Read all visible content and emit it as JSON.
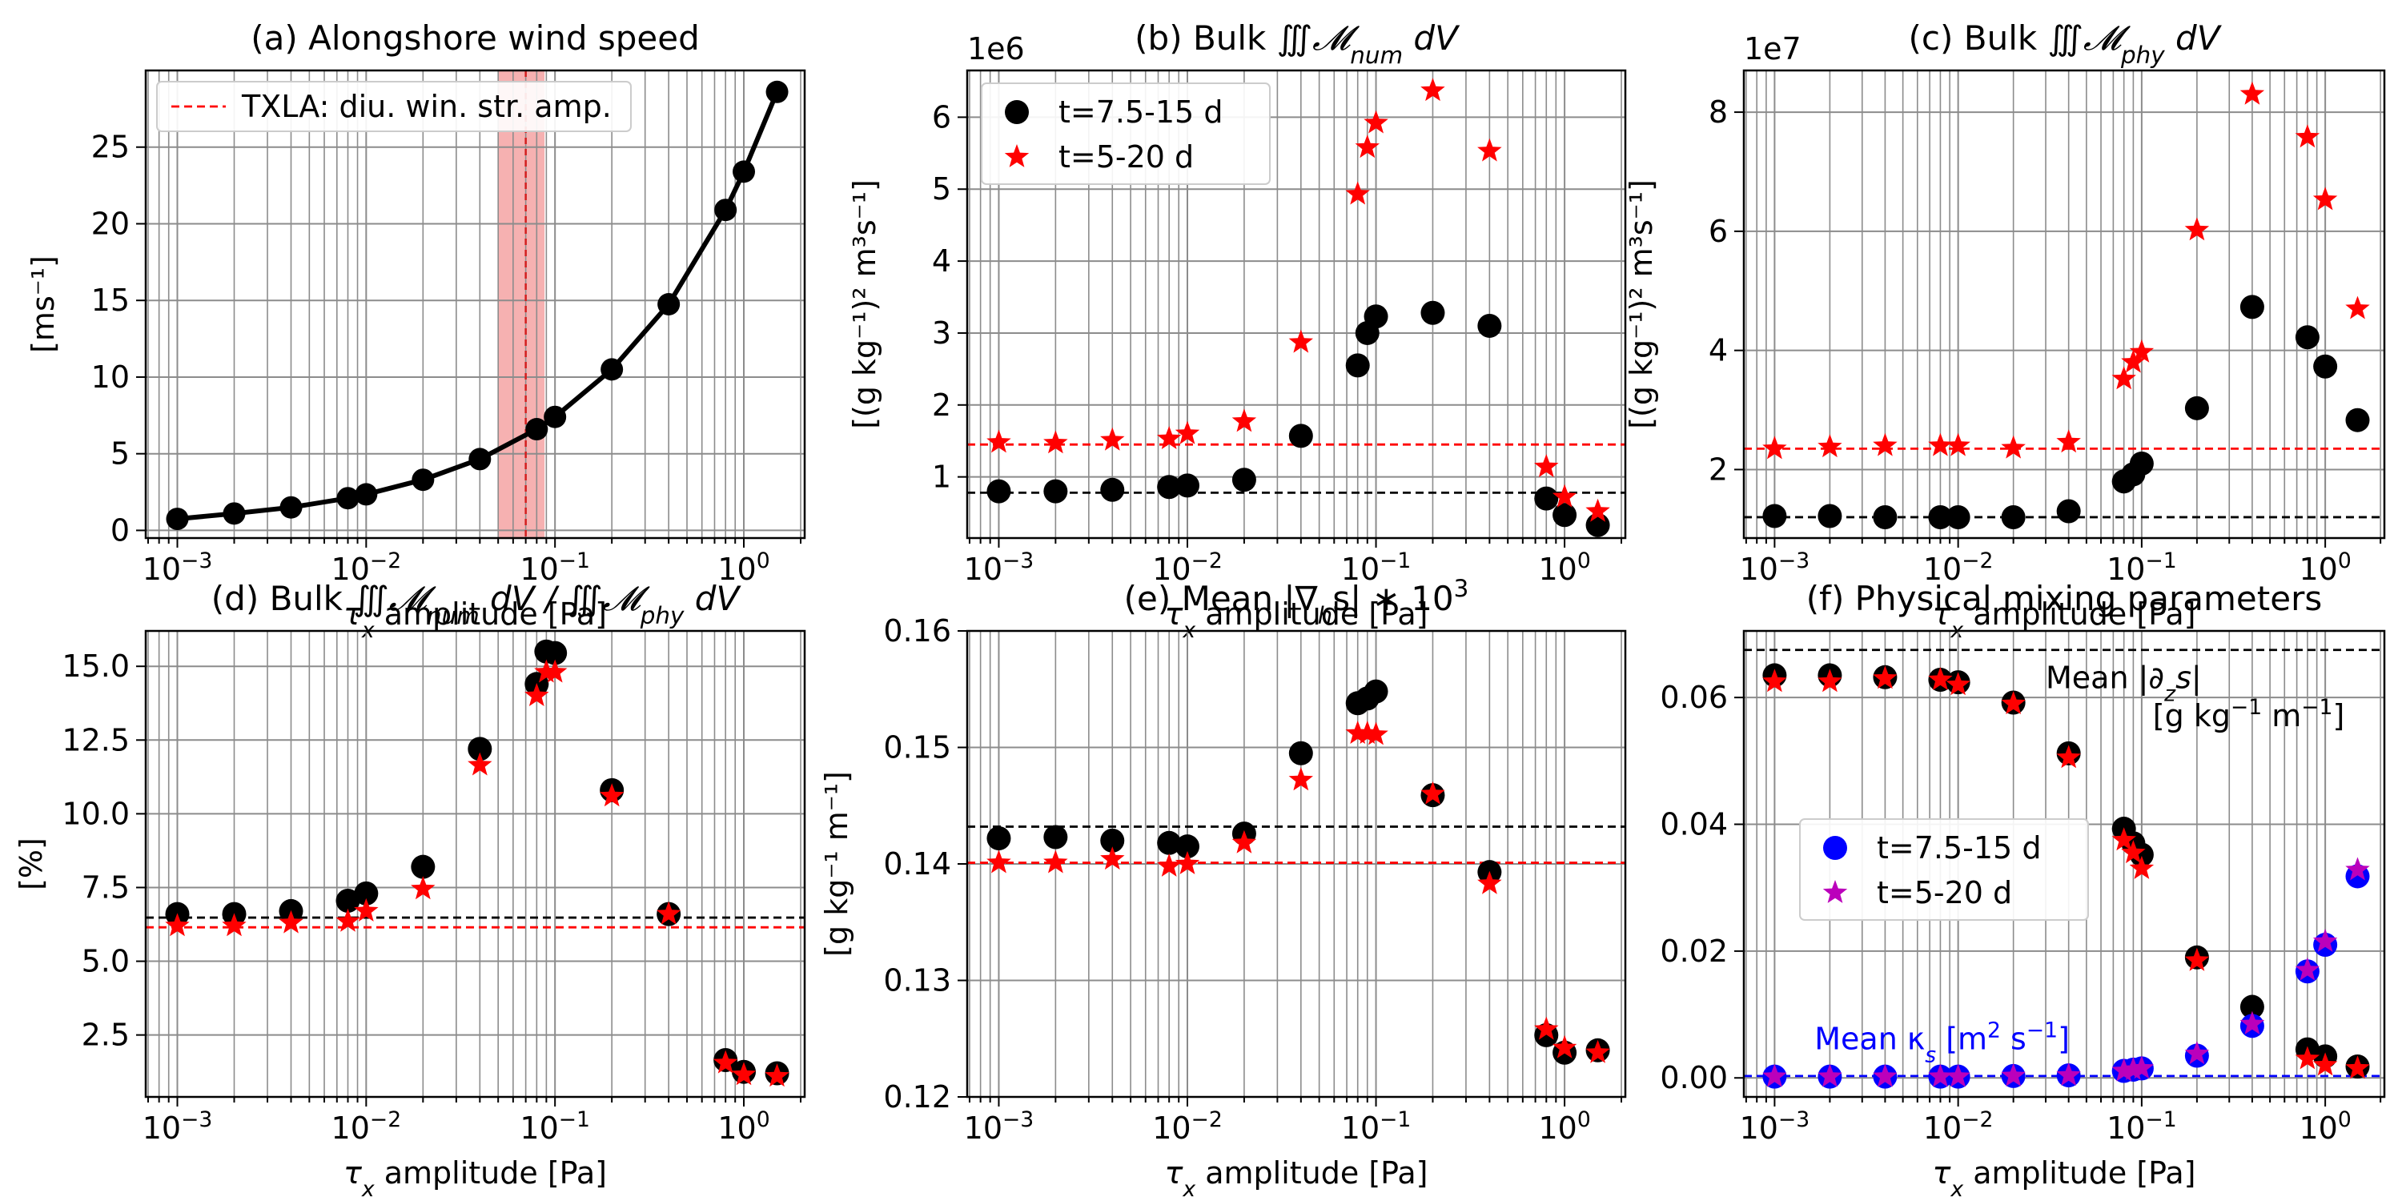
{
  "figure": {
    "xlabel_prefix": "τ",
    "xlabel_sub": "x",
    "xlabel_suffix": " amplitude [Pa]",
    "xticks": [
      {
        "value": 0.001,
        "base": "10",
        "exp": "−3"
      },
      {
        "value": 0.01,
        "base": "10",
        "exp": "−2"
      },
      {
        "value": 0.1,
        "base": "10",
        "exp": "−1"
      },
      {
        "value": 1,
        "base": "10",
        "exp": "0"
      }
    ],
    "xscale": "log",
    "xlim": [
      0.00068,
      2.1
    ],
    "grid": true
  },
  "chart_data": [
    {
      "id": "a",
      "type": "line",
      "title": "(a) Alongshore wind speed",
      "ylabel": "[ms⁻¹]",
      "ylim": [
        -0.5,
        30
      ],
      "yticks": [
        "0",
        "5",
        "10",
        "15",
        "20",
        "25"
      ],
      "ytick_values": [
        0,
        5,
        10,
        15,
        20,
        25
      ],
      "legend": {
        "position": "top-left",
        "entries": [
          {
            "label": "TXLA: diu. win. str. amp.",
            "style": "dash",
            "color": "#ff0000"
          }
        ]
      },
      "vband": {
        "x0": 0.05,
        "x1": 0.088,
        "color": "#f4a3a3"
      },
      "vline": {
        "x": 0.07,
        "color": "#d21e1e"
      },
      "series": [
        {
          "x": [
            0.001,
            0.002,
            0.004,
            0.008,
            0.01,
            0.02,
            0.04,
            0.08,
            0.1,
            0.2,
            0.4,
            0.8,
            1.0,
            1.5
          ],
          "y": [
            0.75,
            1.1,
            1.5,
            2.1,
            2.35,
            3.3,
            4.65,
            6.6,
            7.4,
            10.5,
            14.75,
            20.9,
            23.4,
            28.6
          ],
          "color": "#000000"
        }
      ]
    },
    {
      "id": "b",
      "type": "scatter",
      "title": "(b) Bulk ∭𝓜num dV",
      "title_parts": {
        "prefix": "(b) Bulk ",
        "integral": "∭",
        "symbol": "𝓜",
        "sub": "num",
        "suffix": " dV"
      },
      "ylabel": "[(g kg⁻¹)² m³s⁻¹]",
      "offset_text": "1e6",
      "ylim": [
        0.15,
        6.65
      ],
      "yticks": [
        "1",
        "2",
        "3",
        "4",
        "5",
        "6"
      ],
      "ytick_values": [
        1,
        2,
        3,
        4,
        5,
        6
      ],
      "legend": {
        "position": "top-left"
      },
      "hlines": [
        {
          "y": 0.78,
          "color": "#000000"
        },
        {
          "y": 1.45,
          "color": "#ff0000"
        }
      ],
      "series": [
        {
          "name": "t=7.5-15 d",
          "marker": "circle",
          "color": "#000000",
          "x": [
            0.001,
            0.002,
            0.004,
            0.008,
            0.01,
            0.02,
            0.04,
            0.08,
            0.09,
            0.1,
            0.2,
            0.4,
            0.8,
            1.0,
            1.5
          ],
          "y": [
            0.8,
            0.8,
            0.82,
            0.86,
            0.88,
            0.96,
            1.57,
            2.55,
            3.0,
            3.23,
            3.28,
            3.1,
            0.7,
            0.47,
            0.33
          ]
        },
        {
          "name": "t=5-20 d",
          "marker": "star",
          "color": "#ff0000",
          "x": [
            0.001,
            0.002,
            0.004,
            0.008,
            0.01,
            0.02,
            0.04,
            0.08,
            0.09,
            0.1,
            0.2,
            0.4,
            0.8,
            1.0,
            1.5
          ],
          "y": [
            1.48,
            1.47,
            1.51,
            1.53,
            1.6,
            1.77,
            2.87,
            4.93,
            5.58,
            5.92,
            6.37,
            5.53,
            1.14,
            0.72,
            0.52
          ]
        }
      ]
    },
    {
      "id": "c",
      "type": "scatter",
      "title": "(c) Bulk ∭𝓜phy dV",
      "title_parts": {
        "prefix": "(c) Bulk ",
        "integral": "∭",
        "symbol": "𝓜",
        "sub": "phy",
        "suffix": " dV"
      },
      "ylabel": "[(g kg⁻¹)² m³s⁻¹]",
      "offset_text": "1e7",
      "ylim": [
        0.85,
        8.7
      ],
      "yticks": [
        "2",
        "4",
        "6",
        "8"
      ],
      "ytick_values": [
        2,
        4,
        6,
        8
      ],
      "hlines": [
        {
          "y": 1.2,
          "color": "#000000"
        },
        {
          "y": 2.35,
          "color": "#ff0000"
        }
      ],
      "series": [
        {
          "name": "t=7.5-15 d",
          "marker": "circle",
          "color": "#000000",
          "x": [
            0.001,
            0.002,
            0.004,
            0.008,
            0.01,
            0.02,
            0.04,
            0.08,
            0.09,
            0.1,
            0.2,
            0.4,
            0.8,
            1.0,
            1.5
          ],
          "y": [
            1.22,
            1.22,
            1.2,
            1.2,
            1.2,
            1.2,
            1.3,
            1.8,
            1.92,
            2.1,
            3.03,
            4.73,
            4.22,
            3.73,
            2.83
          ]
        },
        {
          "name": "t=5-20 d",
          "marker": "star",
          "color": "#ff0000",
          "x": [
            0.001,
            0.002,
            0.004,
            0.008,
            0.01,
            0.02,
            0.04,
            0.08,
            0.09,
            0.1,
            0.2,
            0.4,
            0.8,
            1.0,
            1.5
          ],
          "y": [
            2.35,
            2.38,
            2.4,
            2.4,
            2.4,
            2.36,
            2.46,
            3.52,
            3.8,
            3.97,
            6.02,
            8.3,
            7.58,
            6.53,
            4.7
          ]
        }
      ]
    },
    {
      "id": "d",
      "type": "scatter",
      "title": "(d) Bulk ∭𝓜num dV / ∭𝓜phy dV",
      "title_parts": {
        "prefix": "(d) Bulk ",
        "integral": "∭",
        "symbol": "𝓜",
        "sub": "num",
        "mid": " dV / ",
        "integral2": "∭",
        "symbol2": "𝓜",
        "sub2": "phy",
        "suffix": " dV"
      },
      "ylabel": "[%]",
      "ylim": [
        0.4,
        16.2
      ],
      "yticks": [
        "2.5",
        "5.0",
        "7.5",
        "10.0",
        "12.5",
        "15.0"
      ],
      "ytick_values": [
        2.5,
        5,
        7.5,
        10,
        12.5,
        15
      ],
      "hlines": [
        {
          "y": 6.48,
          "color": "#000000"
        },
        {
          "y": 6.15,
          "color": "#ff0000"
        }
      ],
      "series": [
        {
          "name": "t=7.5-15 d",
          "marker": "circle",
          "color": "#000000",
          "x": [
            0.001,
            0.002,
            0.004,
            0.008,
            0.01,
            0.02,
            0.04,
            0.08,
            0.09,
            0.1,
            0.2,
            0.4,
            0.8,
            1.0,
            1.5
          ],
          "y": [
            6.6,
            6.6,
            6.7,
            7.05,
            7.3,
            8.2,
            12.2,
            14.4,
            15.5,
            15.45,
            10.8,
            6.6,
            1.65,
            1.25,
            1.2
          ]
        },
        {
          "name": "t=5-20 d",
          "marker": "star",
          "color": "#ff0000",
          "x": [
            0.001,
            0.002,
            0.004,
            0.008,
            0.01,
            0.02,
            0.04,
            0.08,
            0.09,
            0.1,
            0.2,
            0.4,
            0.8,
            1.0,
            1.5
          ],
          "y": [
            6.2,
            6.2,
            6.3,
            6.35,
            6.7,
            7.45,
            11.65,
            14.0,
            14.8,
            14.8,
            10.6,
            6.6,
            1.55,
            1.15,
            1.1
          ]
        }
      ]
    },
    {
      "id": "e",
      "type": "scatter",
      "title": "(e) Mean |∇hs| * 10³",
      "title_parts": {
        "prefix": "(e) Mean |∇",
        "sub": "h",
        "mid": "s| ∗ 10",
        "sup": "3"
      },
      "ylabel": "[g kg⁻¹ m⁻¹]",
      "ylim": [
        0.12,
        0.16
      ],
      "yticks": [
        "0.12",
        "0.13",
        "0.14",
        "0.15",
        "0.16"
      ],
      "ytick_values": [
        0.12,
        0.13,
        0.14,
        0.15,
        0.16
      ],
      "hlines": [
        {
          "y": 0.1432,
          "color": "#000000"
        },
        {
          "y": 0.1401,
          "color": "#ff0000"
        }
      ],
      "series": [
        {
          "name": "t=7.5-15 d",
          "marker": "circle",
          "color": "#000000",
          "x": [
            0.001,
            0.002,
            0.004,
            0.008,
            0.01,
            0.02,
            0.04,
            0.08,
            0.09,
            0.1,
            0.2,
            0.4,
            0.8,
            1.0,
            1.5
          ],
          "y": [
            0.1422,
            0.1423,
            0.142,
            0.1418,
            0.1415,
            0.1426,
            0.1495,
            0.1538,
            0.1542,
            0.1548,
            0.1459,
            0.1393,
            0.1253,
            0.1238,
            0.124
          ]
        },
        {
          "name": "t=5-20 d",
          "marker": "star",
          "color": "#ff0000",
          "x": [
            0.001,
            0.002,
            0.004,
            0.008,
            0.01,
            0.02,
            0.04,
            0.08,
            0.09,
            0.1,
            0.2,
            0.4,
            0.8,
            1.0,
            1.5
          ],
          "y": [
            0.1401,
            0.1401,
            0.1404,
            0.1398,
            0.14,
            0.1418,
            0.1472,
            0.1512,
            0.1512,
            0.1511,
            0.146,
            0.1383,
            0.1258,
            0.1242,
            0.1238
          ]
        }
      ]
    },
    {
      "id": "f",
      "type": "scatter",
      "title": "(f) Physical mixing parameters",
      "ylim": [
        -0.003,
        0.0705
      ],
      "yticks": [
        "0.00",
        "0.02",
        "0.04",
        "0.06"
      ],
      "ytick_values": [
        0,
        0.02,
        0.04,
        0.06
      ],
      "legend": {
        "position": "center-left"
      },
      "hlines": [
        {
          "y": 0.0675,
          "color": "#000000"
        },
        {
          "y": 0.0003,
          "color": "#0000ff"
        }
      ],
      "annotations": [
        {
          "text_parts": {
            "prefix": "Mean |∂",
            "sub": "z",
            "suffix": "s|"
          },
          "color": "#000000"
        },
        {
          "text_parts": {
            "prefix": "[g kg",
            "sup": "−1",
            "suffix": " m",
            "sup2": "−1",
            "end": "]"
          },
          "color": "#000000"
        },
        {
          "text_parts": {
            "prefix": "Mean κ",
            "sub": "s",
            "mid": " [m",
            "sup": "2",
            "mid2": " s",
            "sup2": "−1",
            "end": "]"
          },
          "color": "#0000ff"
        }
      ],
      "series": [
        {
          "name": "mean_dzs_black",
          "marker": "circle",
          "color": "#000000",
          "x": [
            0.001,
            0.002,
            0.004,
            0.008,
            0.01,
            0.02,
            0.04,
            0.08,
            0.09,
            0.1,
            0.2,
            0.4,
            0.8,
            1.0,
            1.5
          ],
          "y": [
            0.0635,
            0.0635,
            0.0632,
            0.0628,
            0.0624,
            0.0592,
            0.0512,
            0.0393,
            0.037,
            0.0352,
            0.019,
            0.0112,
            0.0045,
            0.0034,
            0.0018
          ]
        },
        {
          "name": "mean_dzs_red",
          "marker": "star",
          "color": "#ff0000",
          "x": [
            0.001,
            0.002,
            0.004,
            0.008,
            0.01,
            0.02,
            0.04,
            0.08,
            0.09,
            0.1,
            0.2,
            0.4,
            0.8,
            1.0,
            1.5
          ],
          "y": [
            0.0625,
            0.0625,
            0.063,
            0.0628,
            0.062,
            0.059,
            0.0505,
            0.0375,
            0.0355,
            0.033,
            0.0185,
            0.0085,
            0.003,
            0.002,
            0.0015
          ]
        },
        {
          "name": "t=7.5-15 d",
          "marker": "circle",
          "color": "#0000ff",
          "x": [
            0.001,
            0.002,
            0.004,
            0.008,
            0.01,
            0.02,
            0.04,
            0.08,
            0.09,
            0.1,
            0.2,
            0.4,
            0.8,
            1.0,
            1.5
          ],
          "y": [
            0.0002,
            0.0002,
            0.0002,
            0.0002,
            0.0002,
            0.0003,
            0.0004,
            0.0011,
            0.0013,
            0.0015,
            0.0035,
            0.0082,
            0.0168,
            0.021,
            0.0318
          ]
        },
        {
          "name": "t=5-20 d",
          "marker": "star",
          "color": "#bb00bb",
          "x": [
            0.001,
            0.002,
            0.004,
            0.008,
            0.01,
            0.02,
            0.04,
            0.08,
            0.09,
            0.1,
            0.2,
            0.4,
            0.8,
            1.0,
            1.5
          ],
          "y": [
            0.0002,
            0.0002,
            0.0002,
            0.0002,
            0.0002,
            0.0003,
            0.0004,
            0.0011,
            0.0013,
            0.0015,
            0.0038,
            0.0085,
            0.017,
            0.0215,
            0.0328
          ]
        }
      ]
    }
  ]
}
